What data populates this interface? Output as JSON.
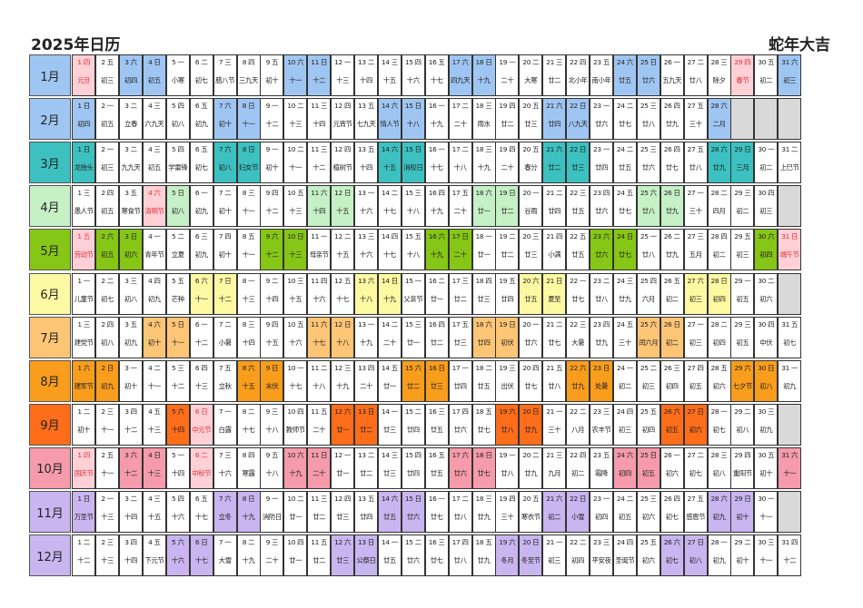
{
  "title": "2025年日历",
  "subtitle": "蛇年大吉",
  "months": [
    {
      "label": "1月",
      "start": 3,
      "days": 31,
      "color": "#9fc6f2",
      "lunar": [
        "元旦",
        "初三",
        "初四",
        "初五",
        "小寒",
        "初七",
        "腊八节",
        "三九天",
        "初十",
        "十一",
        "十二",
        "十三",
        "十四",
        "十五",
        "十六",
        "十七",
        "四九天",
        "十九",
        "二十",
        "大寒",
        "廿二",
        "北小年",
        "南小年",
        "廿五",
        "廿六",
        "五九天",
        "廿八",
        "除夕",
        "春节",
        "初二",
        "初三"
      ]
    },
    {
      "label": "2月",
      "start": 6,
      "days": 28,
      "color": "#9fc6f2",
      "lunar": [
        "初四",
        "初五",
        "立春",
        "六九天",
        "初八",
        "初九",
        "初十",
        "十一",
        "十二",
        "十三",
        "十四",
        "元宵节",
        "七九天",
        "情人节",
        "十八",
        "十九",
        "二十",
        "雨水",
        "廿二",
        "廿三",
        "廿四",
        "八九天",
        "廿六",
        "廿七",
        "廿八",
        "廿九",
        "三十",
        "二月"
      ]
    },
    {
      "label": "3月",
      "start": 6,
      "days": 31,
      "color": "#3cc0c0",
      "lunar": [
        "龙抬头",
        "初三",
        "九九天",
        "初五",
        "学雷锋",
        "初七",
        "初八",
        "妇女节",
        "初十",
        "十一",
        "十二",
        "植树节",
        "十四",
        "十五",
        "消权日",
        "十七",
        "十八",
        "十九",
        "二十",
        "春分",
        "廿二",
        "廿三",
        "廿四",
        "廿五",
        "廿六",
        "廿七",
        "廿八",
        "廿九",
        "三月",
        "初二",
        "上巳节"
      ]
    },
    {
      "label": "4月",
      "start": 2,
      "days": 30,
      "color": "#c6f0c6",
      "lunar": [
        "愚人节",
        "初五",
        "寒食节",
        "清明节",
        "初八",
        "初九",
        "初十",
        "十一",
        "十二",
        "十三",
        "十四",
        "十五",
        "十六",
        "十七",
        "十八",
        "十九",
        "二十",
        "廿一",
        "廿二",
        "谷雨",
        "廿四",
        "廿五",
        "廿六",
        "廿七",
        "廿八",
        "廿九",
        "三十",
        "四月",
        "初二",
        "初三"
      ]
    },
    {
      "label": "5月",
      "start": 4,
      "days": 31,
      "color": "#86c616",
      "lunar": [
        "劳动节",
        "初五",
        "初六",
        "青年节",
        "立夏",
        "初九",
        "初十",
        "十一",
        "十二",
        "十三",
        "母亲节",
        "十五",
        "十六",
        "十七",
        "十八",
        "十九",
        "二十",
        "廿一",
        "廿二",
        "廿三",
        "小满",
        "廿五",
        "廿六",
        "廿七",
        "廿八",
        "廿九",
        "五月",
        "初二",
        "初三",
        "初四",
        "端午节"
      ]
    },
    {
      "label": "6月",
      "start": 0,
      "days": 30,
      "color": "#fdf9a3",
      "lunar": [
        "儿童节",
        "初七",
        "初八",
        "初九",
        "芒种",
        "十一",
        "十二",
        "十三",
        "十四",
        "十五",
        "十六",
        "十七",
        "十八",
        "十九",
        "父亲节",
        "廿一",
        "廿二",
        "廿三",
        "廿四",
        "廿五",
        "夏至",
        "廿七",
        "廿八",
        "廿九",
        "六月",
        "初二",
        "初三",
        "初四",
        "初五",
        "初六"
      ]
    },
    {
      "label": "7月",
      "start": 2,
      "days": 31,
      "color": "#fdc576",
      "lunar": [
        "建党节",
        "初八",
        "初九",
        "初十",
        "十一",
        "十二",
        "小暑",
        "十四",
        "十五",
        "十六",
        "十七",
        "十八",
        "十九",
        "二十",
        "廿一",
        "廿二",
        "廿三",
        "廿四",
        "初伏",
        "廿六",
        "廿七",
        "大暑",
        "廿九",
        "三十",
        "闰六月",
        "初二",
        "初三",
        "初四",
        "初五",
        "中伏",
        "初七"
      ]
    },
    {
      "label": "8月",
      "start": 5,
      "days": 31,
      "color": "#f99d1c",
      "lunar": [
        "建军节",
        "初九",
        "初十",
        "十一",
        "十二",
        "十三",
        "立秋",
        "十五",
        "末伏",
        "十七",
        "十八",
        "十九",
        "二十",
        "廿一",
        "廿二",
        "廿三",
        "廿四",
        "廿五",
        "出伏",
        "廿七",
        "廿八",
        "廿九",
        "处暑",
        "初二",
        "初三",
        "初四",
        "初五",
        "初六",
        "七夕节",
        "初八",
        "初九"
      ]
    },
    {
      "label": "9月",
      "start": 1,
      "days": 30,
      "color": "#fd6d1a",
      "lunar": [
        "初十",
        "十一",
        "十二",
        "十三",
        "十四",
        "中元节",
        "白露",
        "十七",
        "十八",
        "教师节",
        "二十",
        "廿一",
        "廿二",
        "廿三",
        "廿四",
        "廿五",
        "廿六",
        "廿七",
        "廿八",
        "廿九",
        "三十",
        "八月",
        "农丰节",
        "初三",
        "初四",
        "初五",
        "初六",
        "初七",
        "初八",
        "初九"
      ]
    },
    {
      "label": "10月",
      "start": 3,
      "days": 31,
      "color": "#f59bab",
      "lunar": [
        "国庆节",
        "十一",
        "十二",
        "十三",
        "十四",
        "中秋节",
        "十六",
        "寒露",
        "十八",
        "十九",
        "二十",
        "廿一",
        "廿二",
        "廿三",
        "廿四",
        "廿五",
        "廿六",
        "廿七",
        "廿八",
        "廿九",
        "九月",
        "初二",
        "霜降",
        "初四",
        "初五",
        "初六",
        "初七",
        "初八",
        "重阳节",
        "初十",
        "十一"
      ]
    },
    {
      "label": "11月",
      "start": 6,
      "days": 30,
      "color": "#c9b5ef",
      "lunar": [
        "万圣节",
        "十三",
        "十四",
        "十五",
        "十六",
        "十七",
        "立冬",
        "十九",
        "消防日",
        "廿一",
        "廿二",
        "廿三",
        "廿四",
        "廿五",
        "廿六",
        "廿七",
        "廿八",
        "廿九",
        "三十",
        "寒衣节",
        "初二",
        "小雪",
        "初四",
        "初五",
        "初六",
        "初七",
        "感恩节",
        "初九",
        "初十",
        "十一"
      ]
    },
    {
      "label": "12月",
      "start": 1,
      "days": 31,
      "color": "#c9b5ef",
      "lunar": [
        "十二",
        "十三",
        "十四",
        "下元节",
        "十六",
        "十七",
        "大雪",
        "十九",
        "二十",
        "廿一",
        "廿二",
        "廿三",
        "公祭日",
        "廿五",
        "廿六",
        "廿七",
        "廿八",
        "廿九",
        "冬月",
        "冬至节",
        "初三",
        "初四",
        "平安夜",
        "圣诞节",
        "初六",
        "初七",
        "初八",
        "初九",
        "初十",
        "十一",
        "十二"
      ]
    }
  ],
  "weekday_names": [
    "一",
    "二",
    "三",
    "四",
    "五",
    "六",
    "日"
  ],
  "festival_color": "#e0303a",
  "festival_bg": "#ffd0d6",
  "festivals": {
    "1": [
      1,
      29
    ],
    "4": [
      4
    ],
    "5": [
      1,
      31
    ],
    "9": [
      6
    ],
    "10": [
      1,
      6
    ]
  }
}
